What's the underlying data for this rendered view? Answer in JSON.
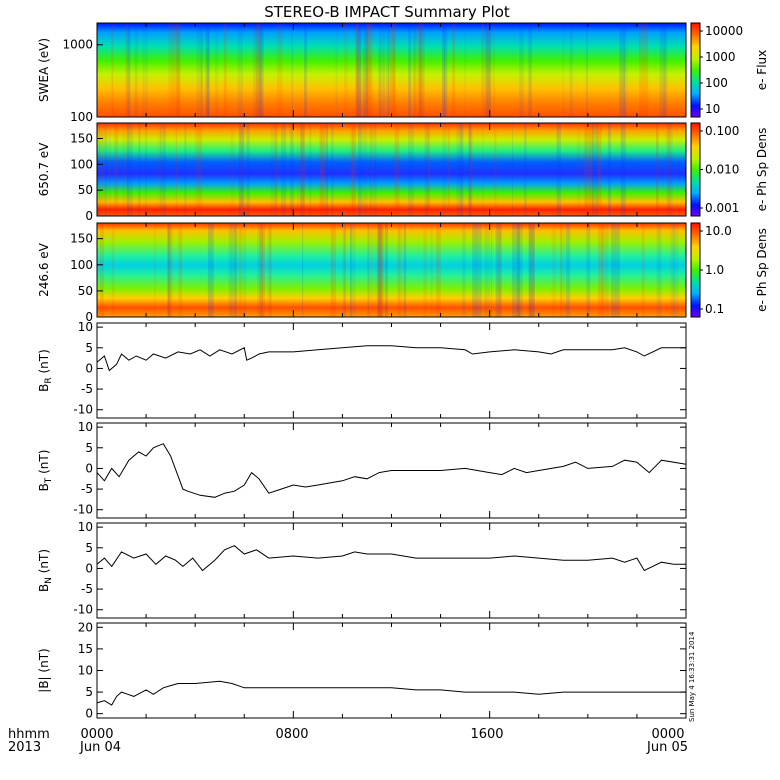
{
  "title": "STEREO-B IMPACT Summary Plot",
  "footer": {
    "left_top": "hhmm",
    "left_bottom": "2013",
    "ticks": [
      "0000",
      "0800",
      "1600",
      "0000"
    ],
    "dates": [
      "Jun 04",
      "Jun 05"
    ]
  },
  "timestamp": "Sun May  4 16:33:31 2014",
  "colors": {
    "line": "#000000",
    "axis": "#000000",
    "colorbar": [
      "#7000ff",
      "#0010ff",
      "#00b0ff",
      "#00e0a0",
      "#40f000",
      "#c0f000",
      "#ffd000",
      "#ff7000",
      "#ff1000"
    ]
  },
  "chart_data": [
    {
      "type": "heatmap",
      "ylabel": "SWEA (eV)",
      "yscale": "log",
      "ylim": [
        100,
        2000
      ],
      "yticks": [
        "1000",
        "100"
      ],
      "colorbar": {
        "label": "e- Flux",
        "scale": "log",
        "ticks": [
          "10000",
          "1000",
          "100",
          "10"
        ]
      }
    },
    {
      "type": "heatmap",
      "ylabel": "650.7 eV",
      "ylim": [
        0,
        180
      ],
      "yticks": [
        "150",
        "100",
        "50",
        "0"
      ],
      "colorbar": {
        "label": "e- Ph Sp Dens",
        "scale": "log",
        "ticks": [
          "0.100",
          "0.010",
          "0.001"
        ]
      }
    },
    {
      "type": "heatmap",
      "ylabel": "246.6 eV",
      "ylim": [
        0,
        180
      ],
      "yticks": [
        "150",
        "100",
        "50",
        "0"
      ],
      "colorbar": {
        "label": "e- Ph Sp Dens",
        "scale": "log",
        "ticks": [
          "10.0",
          "1.0",
          "0.1"
        ]
      }
    },
    {
      "type": "line",
      "ylabel": "B_R (nT)",
      "ylim": [
        -12,
        11
      ],
      "yticks": [
        10,
        5,
        0,
        -5,
        -10
      ],
      "x_hours": [
        0,
        0.3,
        0.5,
        0.8,
        1.0,
        1.3,
        1.6,
        2.0,
        2.3,
        2.8,
        3.3,
        3.8,
        4.2,
        4.6,
        5.0,
        5.5,
        6.0,
        6.1,
        6.3,
        6.6,
        7.0,
        8.0,
        9.0,
        10.0,
        11.0,
        12.0,
        13.0,
        14.0,
        15.0,
        15.3,
        16.0,
        17.0,
        18.0,
        18.5,
        19.0,
        20.0,
        21.0,
        21.5,
        22.0,
        22.3,
        23.0,
        24.0
      ],
      "values": [
        1.5,
        3.0,
        -0.5,
        1.0,
        3.5,
        2.0,
        3.0,
        2.0,
        3.5,
        2.5,
        4.0,
        3.5,
        4.5,
        3.0,
        4.5,
        3.5,
        5.0,
        2.0,
        2.5,
        3.5,
        4.0,
        4.0,
        4.5,
        5.0,
        5.5,
        5.5,
        5.0,
        5.0,
        4.5,
        3.5,
        4.0,
        4.5,
        4.0,
        3.5,
        4.5,
        4.5,
        4.5,
        5.0,
        4.0,
        3.0,
        5.0,
        5.0
      ]
    },
    {
      "type": "line",
      "ylabel": "B_T (nT)",
      "ylim": [
        -12,
        11
      ],
      "yticks": [
        10,
        5,
        0,
        -5,
        -10
      ],
      "x_hours": [
        0,
        0.3,
        0.6,
        0.9,
        1.3,
        1.7,
        2.0,
        2.3,
        2.7,
        3.0,
        3.5,
        3.7,
        4.2,
        4.8,
        5.2,
        5.6,
        6.0,
        6.3,
        6.6,
        7.0,
        7.5,
        8.0,
        8.5,
        9.0,
        9.5,
        10.0,
        10.5,
        11.0,
        11.5,
        12.0,
        13.0,
        14.0,
        15.0,
        16.0,
        16.5,
        17.0,
        17.5,
        18.0,
        19.0,
        19.5,
        20.0,
        21.0,
        21.5,
        22.0,
        22.5,
        23.0,
        24.0
      ],
      "values": [
        -1.0,
        -3.0,
        0.0,
        -2.0,
        2.0,
        4.0,
        3.0,
        5.0,
        6.0,
        3.0,
        -5.0,
        -5.5,
        -6.5,
        -7.0,
        -6.0,
        -5.5,
        -4.0,
        -1.0,
        -2.5,
        -6.0,
        -5.0,
        -4.0,
        -4.5,
        -4.0,
        -3.5,
        -3.0,
        -2.0,
        -2.5,
        -1.0,
        -0.5,
        -0.5,
        -0.5,
        0.0,
        -1.0,
        -1.5,
        0.0,
        -1.0,
        -0.5,
        0.5,
        1.5,
        0.0,
        0.5,
        2.0,
        1.5,
        -1.0,
        2.0,
        1.0
      ]
    },
    {
      "type": "line",
      "ylabel": "B_N (nT)",
      "ylim": [
        -12,
        11
      ],
      "yticks": [
        10,
        5,
        0,
        -5,
        -10
      ],
      "x_hours": [
        0,
        0.3,
        0.6,
        1.0,
        1.5,
        2.0,
        2.4,
        2.8,
        3.2,
        3.5,
        3.9,
        4.3,
        4.8,
        5.2,
        5.6,
        6.0,
        6.5,
        7.0,
        8.0,
        9.0,
        10.0,
        10.5,
        11.0,
        12.0,
        13.0,
        14.0,
        15.0,
        16.0,
        17.0,
        18.0,
        19.0,
        20.0,
        21.0,
        21.5,
        22.0,
        22.3,
        23.0,
        23.5,
        24.0
      ],
      "values": [
        1.0,
        2.5,
        0.5,
        4.0,
        2.5,
        3.5,
        1.0,
        3.0,
        2.0,
        0.5,
        2.5,
        -0.5,
        2.0,
        4.5,
        5.5,
        3.5,
        4.5,
        2.5,
        3.0,
        2.5,
        3.0,
        4.0,
        3.5,
        3.5,
        2.5,
        2.5,
        2.5,
        2.5,
        3.0,
        2.5,
        2.0,
        2.0,
        2.5,
        1.5,
        2.5,
        -0.5,
        1.5,
        1.0,
        1.0
      ]
    },
    {
      "type": "line",
      "ylabel": "|B| (nT)",
      "ylim": [
        -1,
        21
      ],
      "yticks": [
        20,
        15,
        10,
        5,
        0
      ],
      "x_hours": [
        0,
        0.3,
        0.6,
        0.8,
        1.0,
        1.5,
        2.0,
        2.3,
        2.7,
        3.0,
        3.3,
        4.0,
        5.0,
        5.5,
        6.0,
        6.5,
        7.0,
        8.0,
        9.0,
        10.0,
        11.0,
        12.0,
        13.0,
        14.0,
        15.0,
        16.0,
        17.0,
        18.0,
        19.0,
        20.0,
        21.0,
        22.0,
        23.0,
        24.0
      ],
      "values": [
        2.5,
        3.0,
        2.0,
        4.0,
        5.0,
        4.0,
        5.5,
        4.5,
        6.0,
        6.5,
        7.0,
        7.0,
        7.5,
        7.0,
        6.0,
        6.0,
        6.0,
        6.0,
        6.0,
        6.0,
        6.0,
        6.0,
        5.5,
        5.5,
        5.0,
        5.0,
        5.0,
        4.5,
        5.0,
        5.0,
        5.0,
        5.0,
        5.0,
        5.0
      ]
    }
  ]
}
